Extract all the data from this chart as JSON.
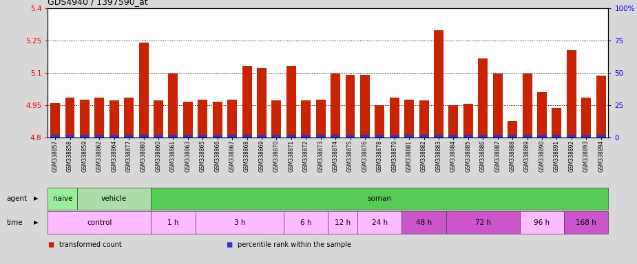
{
  "title": "GDS4940 / 1397590_at",
  "samples": [
    "GSM338857",
    "GSM338858",
    "GSM338859",
    "GSM338862",
    "GSM338864",
    "GSM338877",
    "GSM338880",
    "GSM338860",
    "GSM338861",
    "GSM338863",
    "GSM338865",
    "GSM338866",
    "GSM338867",
    "GSM338868",
    "GSM338869",
    "GSM338870",
    "GSM338871",
    "GSM338872",
    "GSM338873",
    "GSM338874",
    "GSM338875",
    "GSM338876",
    "GSM338878",
    "GSM338879",
    "GSM338881",
    "GSM338882",
    "GSM338883",
    "GSM338884",
    "GSM338885",
    "GSM338886",
    "GSM338887",
    "GSM338888",
    "GSM338889",
    "GSM338890",
    "GSM338891",
    "GSM338892",
    "GSM338893",
    "GSM338894"
  ],
  "values": [
    4.96,
    4.985,
    4.975,
    4.985,
    4.97,
    4.985,
    5.24,
    4.97,
    5.095,
    4.965,
    4.975,
    4.965,
    4.975,
    5.13,
    5.12,
    4.97,
    5.13,
    4.97,
    4.975,
    5.095,
    5.09,
    5.09,
    4.95,
    4.985,
    4.975,
    4.97,
    5.295,
    4.95,
    4.955,
    5.165,
    5.095,
    4.875,
    5.095,
    5.01,
    4.935,
    5.205,
    4.985,
    5.085
  ],
  "bar_color": "#cc2200",
  "percentile_color": "#3333cc",
  "ylim_left": [
    4.8,
    5.4
  ],
  "ylim_right": [
    0,
    100
  ],
  "yticks_left": [
    4.8,
    4.95,
    5.1,
    5.25,
    5.4
  ],
  "yticks_right": [
    0,
    25,
    50,
    75,
    100
  ],
  "ytick_labels_right": [
    "0",
    "25",
    "50",
    "75",
    "100%"
  ],
  "hlines": [
    4.95,
    5.1,
    5.25
  ],
  "agent_groups": [
    {
      "label": "naive",
      "start": 0,
      "end": 2,
      "color": "#99ee99"
    },
    {
      "label": "vehicle",
      "start": 2,
      "end": 7,
      "color": "#aaddaa"
    },
    {
      "label": "soman",
      "start": 7,
      "end": 38,
      "color": "#55cc55"
    }
  ],
  "time_groups": [
    {
      "label": "control",
      "start": 0,
      "end": 7,
      "color": "#ffbbff"
    },
    {
      "label": "1 h",
      "start": 7,
      "end": 10,
      "color": "#ffbbff"
    },
    {
      "label": "3 h",
      "start": 10,
      "end": 16,
      "color": "#ffbbff"
    },
    {
      "label": "6 h",
      "start": 16,
      "end": 19,
      "color": "#ffbbff"
    },
    {
      "label": "12 h",
      "start": 19,
      "end": 21,
      "color": "#ffbbff"
    },
    {
      "label": "24 h",
      "start": 21,
      "end": 24,
      "color": "#ffbbff"
    },
    {
      "label": "48 h",
      "start": 24,
      "end": 27,
      "color": "#cc55cc"
    },
    {
      "label": "72 h",
      "start": 27,
      "end": 32,
      "color": "#cc55cc"
    },
    {
      "label": "96 h",
      "start": 32,
      "end": 35,
      "color": "#ffbbff"
    },
    {
      "label": "168 h",
      "start": 35,
      "end": 38,
      "color": "#cc55cc"
    }
  ],
  "legend_items": [
    {
      "label": "transformed count",
      "color": "#cc2200"
    },
    {
      "label": "percentile rank within the sample",
      "color": "#3333cc"
    }
  ],
  "background_color": "#d8d8d8",
  "plot_bg_color": "#ffffff"
}
